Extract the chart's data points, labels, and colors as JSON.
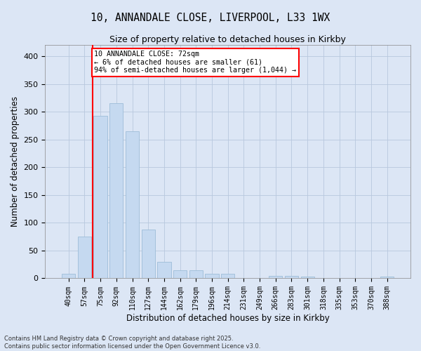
{
  "title_line1": "10, ANNANDALE CLOSE, LIVERPOOL, L33 1WX",
  "title_line2": "Size of property relative to detached houses in Kirkby",
  "xlabel": "Distribution of detached houses by size in Kirkby",
  "ylabel": "Number of detached properties",
  "bar_labels": [
    "40sqm",
    "57sqm",
    "75sqm",
    "92sqm",
    "110sqm",
    "127sqm",
    "144sqm",
    "162sqm",
    "179sqm",
    "196sqm",
    "214sqm",
    "231sqm",
    "249sqm",
    "266sqm",
    "283sqm",
    "301sqm",
    "318sqm",
    "335sqm",
    "353sqm",
    "370sqm",
    "388sqm"
  ],
  "bar_values": [
    8,
    75,
    293,
    315,
    265,
    88,
    30,
    15,
    15,
    8,
    8,
    0,
    0,
    5,
    5,
    3,
    0,
    0,
    0,
    0,
    3
  ],
  "bar_color": "#c5d9f0",
  "bar_edge_color": "#9dbdd8",
  "vline_x": 1.5,
  "vline_color": "red",
  "ylim": [
    0,
    420
  ],
  "yticks": [
    0,
    50,
    100,
    150,
    200,
    250,
    300,
    350,
    400
  ],
  "annotation_text": "10 ANNANDALE CLOSE: 72sqm\n← 6% of detached houses are smaller (61)\n94% of semi-detached houses are larger (1,044) →",
  "annotation_box_color": "white",
  "annotation_box_edge": "red",
  "footer_text": "Contains HM Land Registry data © Crown copyright and database right 2025.\nContains public sector information licensed under the Open Government Licence v3.0.",
  "background_color": "#dce6f5",
  "grid_color": "#b8c8de",
  "title1_fontsize": 10.5,
  "title2_fontsize": 9,
  "tick_fontsize": 7,
  "ylabel_fontsize": 8.5,
  "xlabel_fontsize": 8.5
}
